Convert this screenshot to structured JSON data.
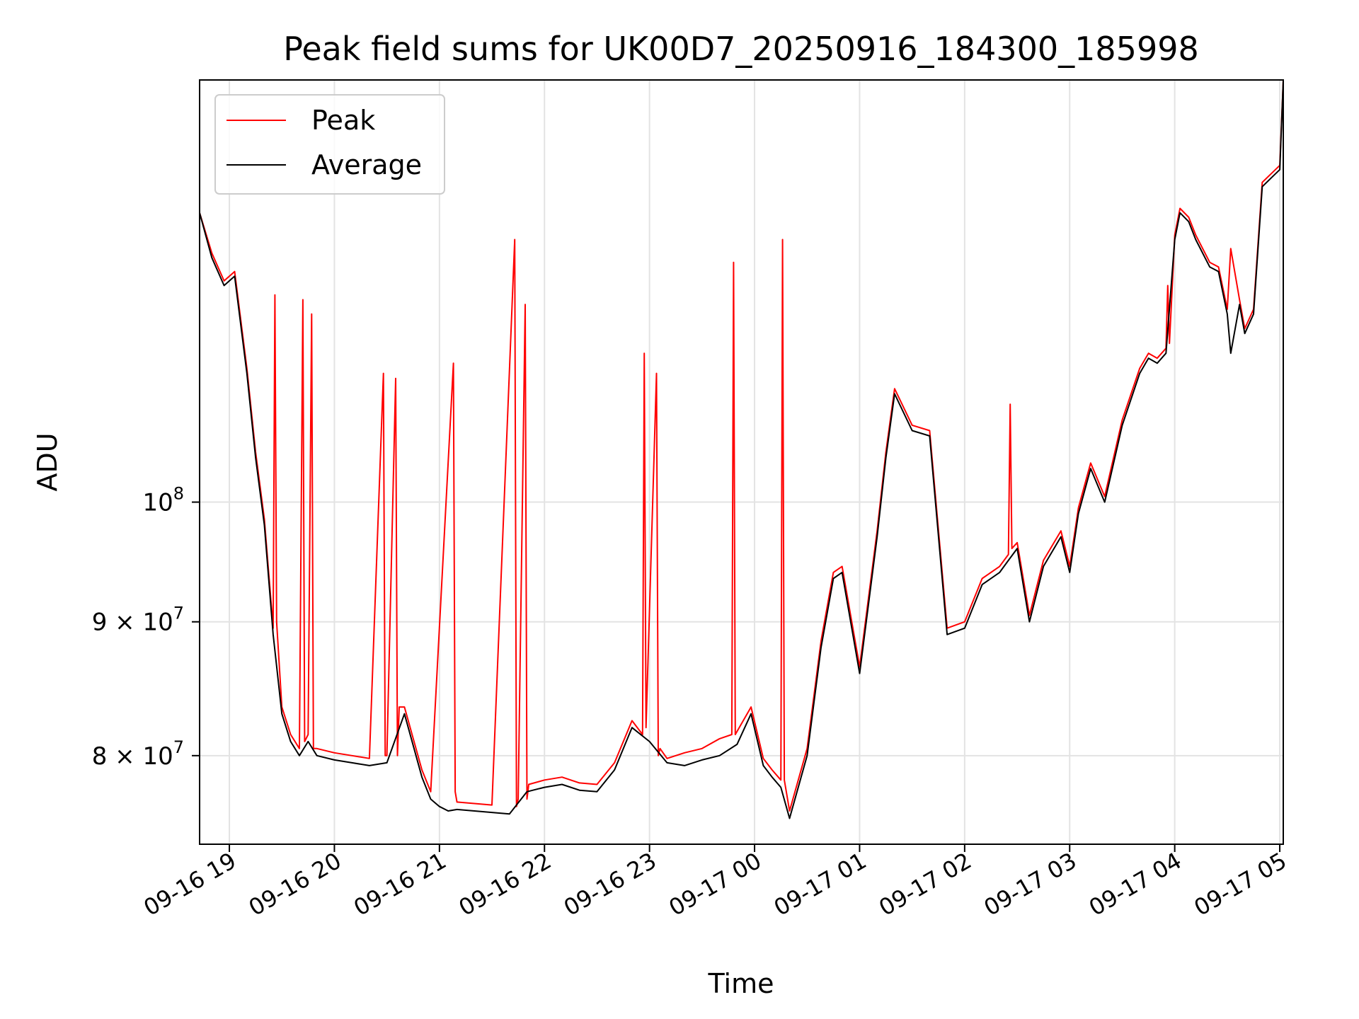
{
  "chart_data": {
    "type": "line",
    "title": "Peak field sums for UK00D7_20250916_184300_185998",
    "xlabel": "Time",
    "ylabel": "ADU",
    "y_scale": "log",
    "xlim": [
      "2025-09-16 18:43",
      "2025-09-17 05:02"
    ],
    "ylim": [
      74000000.0,
      145000000.0
    ],
    "x_ticks": [
      "09-16 19",
      "09-16 20",
      "09-16 21",
      "09-16 22",
      "09-16 23",
      "09-17 00",
      "09-17 01",
      "09-17 02",
      "09-17 03",
      "09-17 04",
      "09-17 05"
    ],
    "y_ticks": [
      {
        "value": 80000000,
        "label": "8 × 10",
        "exp": "7"
      },
      {
        "value": 90000000,
        "label": "9 × 10",
        "exp": "7"
      },
      {
        "value": 100000000,
        "label": "10",
        "exp": "8"
      }
    ],
    "grid": true,
    "legend": "top-left",
    "colors": {
      "Peak": "#ff0000",
      "Average": "#000000"
    },
    "series": [
      {
        "name": "Average",
        "x": [
          "2025-09-16 18:43",
          "2025-09-16 18:50",
          "2025-09-16 18:57",
          "2025-09-16 19:03",
          "2025-09-16 19:10",
          "2025-09-16 19:15",
          "2025-09-16 19:20",
          "2025-09-16 19:25",
          "2025-09-16 19:30",
          "2025-09-16 19:35",
          "2025-09-16 19:40",
          "2025-09-16 19:45",
          "2025-09-16 19:50",
          "2025-09-16 20:00",
          "2025-09-16 20:10",
          "2025-09-16 20:20",
          "2025-09-16 20:30",
          "2025-09-16 20:40",
          "2025-09-16 20:50",
          "2025-09-16 20:55",
          "2025-09-16 21:00",
          "2025-09-16 21:05",
          "2025-09-16 21:10",
          "2025-09-16 21:20",
          "2025-09-16 21:30",
          "2025-09-16 21:40",
          "2025-09-16 21:50",
          "2025-09-16 22:00",
          "2025-09-16 22:10",
          "2025-09-16 22:20",
          "2025-09-16 22:30",
          "2025-09-16 22:40",
          "2025-09-16 22:50",
          "2025-09-16 23:00",
          "2025-09-16 23:10",
          "2025-09-16 23:20",
          "2025-09-16 23:30",
          "2025-09-16 23:40",
          "2025-09-16 23:50",
          "2025-09-16 23:58",
          "2025-09-17 00:05",
          "2025-09-17 00:10",
          "2025-09-17 00:15",
          "2025-09-17 00:20",
          "2025-09-17 00:30",
          "2025-09-17 00:38",
          "2025-09-17 00:45",
          "2025-09-17 00:50",
          "2025-09-17 01:00",
          "2025-09-17 01:10",
          "2025-09-17 01:15",
          "2025-09-17 01:20",
          "2025-09-17 01:30",
          "2025-09-17 01:40",
          "2025-09-17 01:50",
          "2025-09-17 02:00",
          "2025-09-17 02:10",
          "2025-09-17 02:20",
          "2025-09-17 02:25",
          "2025-09-17 02:30",
          "2025-09-17 02:37",
          "2025-09-17 02:45",
          "2025-09-17 02:55",
          "2025-09-17 03:00",
          "2025-09-17 03:05",
          "2025-09-17 03:12",
          "2025-09-17 03:20",
          "2025-09-17 03:30",
          "2025-09-17 03:40",
          "2025-09-17 03:45",
          "2025-09-17 03:50",
          "2025-09-17 03:55",
          "2025-09-17 04:00",
          "2025-09-17 04:03",
          "2025-09-17 04:08",
          "2025-09-17 04:12",
          "2025-09-17 04:20",
          "2025-09-17 04:25",
          "2025-09-17 04:30",
          "2025-09-17 04:32",
          "2025-09-17 04:37",
          "2025-09-17 04:40",
          "2025-09-17 04:45",
          "2025-09-17 04:50",
          "2025-09-17 04:55",
          "2025-09-17 05:00",
          "2025-09-17 05:02"
        ],
        "y": [
          129000000,
          124000000,
          121000000,
          122000000,
          112000000,
          104000000,
          98000000,
          89000000,
          83000000,
          81000000,
          80000000,
          81000000,
          80000000,
          79700000,
          79500000,
          79300000,
          79500000,
          83000000,
          78500000,
          77000000,
          76500000,
          76200000,
          76300000,
          76200000,
          76100000,
          76000000,
          77500000,
          77800000,
          78000000,
          77600000,
          77500000,
          79000000,
          82000000,
          81000000,
          79500000,
          79300000,
          79700000,
          80000000,
          80800000,
          83000000,
          79300000,
          78500000,
          77800000,
          75700000,
          80000000,
          88000000,
          93500000,
          94000000,
          86000000,
          97000000,
          104000000,
          110000000,
          106500000,
          106000000,
          89000000,
          89500000,
          93000000,
          94000000,
          95000000,
          96000000,
          90000000,
          94500000,
          97000000,
          94000000,
          99000000,
          103000000,
          100000000,
          107000000,
          112000000,
          113500000,
          113000000,
          114000000,
          126000000,
          129000000,
          128000000,
          126000000,
          123000000,
          122500000,
          118000000,
          114000000,
          119000000,
          116000000,
          118000000,
          132000000,
          133000000,
          134000000,
          145000000
        ]
      },
      {
        "name": "Peak",
        "x": [
          "2025-09-16 18:43",
          "2025-09-16 18:50",
          "2025-09-16 18:57",
          "2025-09-16 19:03",
          "2025-09-16 19:10",
          "2025-09-16 19:15",
          "2025-09-16 19:20",
          "2025-09-16 19:25",
          "2025-09-16 19:26",
          "2025-09-16 19:27",
          "2025-09-16 19:30",
          "2025-09-16 19:35",
          "2025-09-16 19:40",
          "2025-09-16 19:42",
          "2025-09-16 19:43",
          "2025-09-16 19:45",
          "2025-09-16 19:47",
          "2025-09-16 19:48",
          "2025-09-16 19:50",
          "2025-09-16 20:00",
          "2025-09-16 20:10",
          "2025-09-16 20:20",
          "2025-09-16 20:28",
          "2025-09-16 20:29",
          "2025-09-16 20:30",
          "2025-09-16 20:35",
          "2025-09-16 20:36",
          "2025-09-16 20:37",
          "2025-09-16 20:40",
          "2025-09-16 20:50",
          "2025-09-16 20:55",
          "2025-09-16 21:08",
          "2025-09-16 21:09",
          "2025-09-16 21:10",
          "2025-09-16 21:20",
          "2025-09-16 21:30",
          "2025-09-16 21:43",
          "2025-09-16 21:44",
          "2025-09-16 21:45",
          "2025-09-16 21:49",
          "2025-09-16 21:50",
          "2025-09-16 21:51",
          "2025-09-16 22:00",
          "2025-09-16 22:10",
          "2025-09-16 22:20",
          "2025-09-16 22:30",
          "2025-09-16 22:40",
          "2025-09-16 22:50",
          "2025-09-16 22:56",
          "2025-09-16 22:57",
          "2025-09-16 22:58",
          "2025-09-16 23:04",
          "2025-09-16 23:05",
          "2025-09-16 23:06",
          "2025-09-16 23:10",
          "2025-09-16 23:20",
          "2025-09-16 23:30",
          "2025-09-16 23:40",
          "2025-09-16 23:47",
          "2025-09-16 23:48",
          "2025-09-16 23:49",
          "2025-09-16 23:58",
          "2025-09-17 00:05",
          "2025-09-17 00:10",
          "2025-09-17 00:15",
          "2025-09-17 00:16",
          "2025-09-17 00:17",
          "2025-09-17 00:20",
          "2025-09-17 00:30",
          "2025-09-17 00:38",
          "2025-09-17 00:45",
          "2025-09-17 00:50",
          "2025-09-17 01:00",
          "2025-09-17 01:10",
          "2025-09-17 01:15",
          "2025-09-17 01:20",
          "2025-09-17 01:30",
          "2025-09-17 01:40",
          "2025-09-17 01:50",
          "2025-09-17 02:00",
          "2025-09-17 02:10",
          "2025-09-17 02:20",
          "2025-09-17 02:25",
          "2025-09-17 02:26",
          "2025-09-17 02:27",
          "2025-09-17 02:30",
          "2025-09-17 02:37",
          "2025-09-17 02:45",
          "2025-09-17 02:55",
          "2025-09-17 03:00",
          "2025-09-17 03:05",
          "2025-09-17 03:12",
          "2025-09-17 03:20",
          "2025-09-17 03:30",
          "2025-09-17 03:40",
          "2025-09-17 03:45",
          "2025-09-17 03:50",
          "2025-09-17 03:55",
          "2025-09-17 03:56",
          "2025-09-17 03:57",
          "2025-09-17 04:00",
          "2025-09-17 04:03",
          "2025-09-17 04:08",
          "2025-09-17 04:12",
          "2025-09-17 04:20",
          "2025-09-17 04:25",
          "2025-09-17 04:30",
          "2025-09-17 04:32",
          "2025-09-17 04:37",
          "2025-09-17 04:40",
          "2025-09-17 04:45",
          "2025-09-17 04:50",
          "2025-09-17 04:55",
          "2025-09-17 05:00",
          "2025-09-17 05:02"
        ],
        "y": [
          129000000,
          124500000,
          121500000,
          122500000,
          112500000,
          104500000,
          98500000,
          89500000,
          120000000,
          90000000,
          83500000,
          81500000,
          80500000,
          119500000,
          81000000,
          81500000,
          118000000,
          80500000,
          80500000,
          80200000,
          80000000,
          79800000,
          112000000,
          80000000,
          80000000,
          111500000,
          80000000,
          83500000,
          83500000,
          79000000,
          77500000,
          113000000,
          77500000,
          76800000,
          76700000,
          76600000,
          126000000,
          76500000,
          77000000,
          119000000,
          77000000,
          78000000,
          78300000,
          78500000,
          78100000,
          78000000,
          79500000,
          82500000,
          81500000,
          114000000,
          82000000,
          112000000,
          80000000,
          80500000,
          79800000,
          80200000,
          80500000,
          81200000,
          81500000,
          123500000,
          81500000,
          83500000,
          79800000,
          79000000,
          78300000,
          126000000,
          78300000,
          76200000,
          80500000,
          88500000,
          94000000,
          94500000,
          86500000,
          97500000,
          104500000,
          110500000,
          107000000,
          106500000,
          89500000,
          90000000,
          93500000,
          94500000,
          95500000,
          109000000,
          96000000,
          96500000,
          90500000,
          95000000,
          97500000,
          94500000,
          99500000,
          103500000,
          100500000,
          107500000,
          112500000,
          114000000,
          113500000,
          114500000,
          121000000,
          115000000,
          126500000,
          129500000,
          128500000,
          126500000,
          123500000,
          123000000,
          118500000,
          125000000,
          119500000,
          116500000,
          118500000,
          132500000,
          133500000,
          134500000,
          145000000
        ]
      }
    ]
  }
}
